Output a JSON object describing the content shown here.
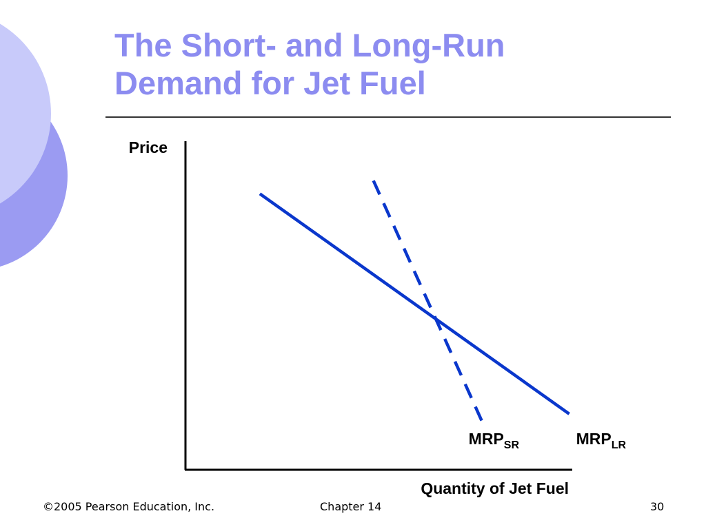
{
  "slide": {
    "title_lines": [
      "The Short- and Long-Run",
      "Demand for Jet Fuel"
    ],
    "colors": {
      "title": "#8c8cf0",
      "curve": "#0a37cc",
      "circle_light": "#c8cafa",
      "circle_dark": "#9b9bf2"
    }
  },
  "chart_data": {
    "type": "line",
    "title": "",
    "xlabel": "Quantity of Jet Fuel",
    "ylabel": "Price",
    "xlim": [
      0,
      1
    ],
    "ylim": [
      0,
      1
    ],
    "grid": false,
    "legend": "none",
    "series": [
      {
        "name": "MRP_SR",
        "label_main": "MRP",
        "label_sub": "SR",
        "style": "dashed",
        "x": [
          0.48,
          0.76
        ],
        "y": [
          0.88,
          0.14
        ]
      },
      {
        "name": "MRP_LR",
        "label_main": "MRP",
        "label_sub": "LR",
        "style": "solid",
        "x": [
          0.19,
          0.98
        ],
        "y": [
          0.84,
          0.17
        ]
      }
    ]
  },
  "footer": {
    "copyright": "©2005 Pearson Education, Inc.",
    "chapter": "Chapter 14",
    "page": "30"
  }
}
